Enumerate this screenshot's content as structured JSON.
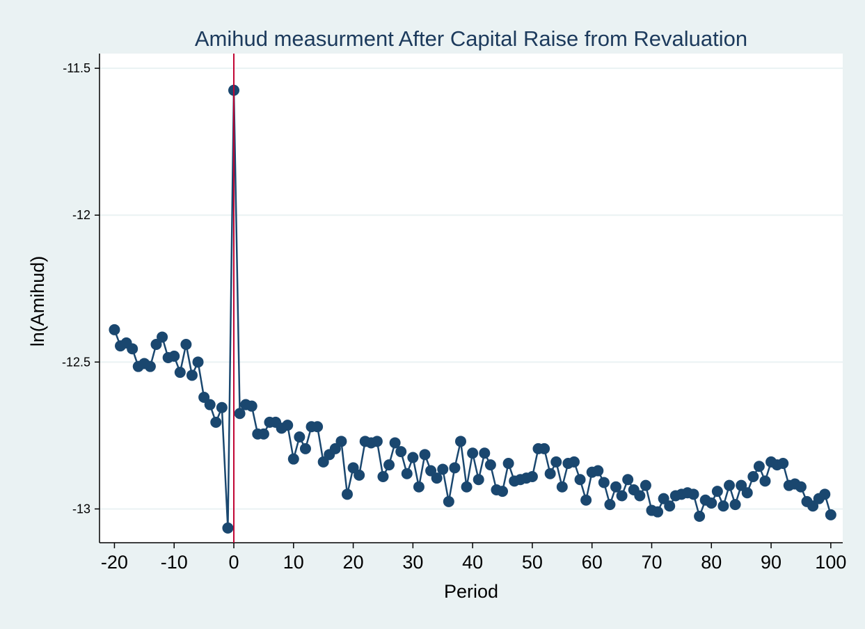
{
  "chart_data": {
    "type": "scatter",
    "title": "Amihud measurment  After Capital Raise from Revaluation",
    "xlabel": "Period",
    "ylabel": "ln(Amihud)",
    "xlim": [
      -22.5,
      102
    ],
    "ylim": [
      -13.115,
      -11.45
    ],
    "xticks": [
      -20,
      -10,
      0,
      10,
      20,
      30,
      40,
      50,
      60,
      70,
      80,
      90,
      100
    ],
    "xtick_labels": [
      "-20",
      "-10",
      "0",
      "10",
      "20",
      "30",
      "40",
      "50",
      "60",
      "70",
      "80",
      "90",
      "100"
    ],
    "yticks": [
      -11.5,
      -12,
      -12.5,
      -13
    ],
    "ytick_labels": [
      "-11.5",
      "-12",
      "-12.5",
      "-13"
    ],
    "grid": true,
    "reference_line_x": 0,
    "colors": {
      "series": "#1a476f",
      "reference_line": "#c10534",
      "background": "#eaf2f3",
      "plot_background": "#ffffff",
      "grid": "#eaf2f3"
    },
    "series": [
      {
        "x": [
          -20,
          -19,
          -18,
          -17,
          -16,
          -15,
          -14,
          -13,
          -12,
          -11,
          -10,
          -9,
          -8,
          -7,
          -6,
          -5,
          -4,
          -3,
          -2,
          -1,
          0,
          1,
          2,
          3,
          4,
          5,
          6,
          7,
          8,
          9,
          10,
          11,
          12,
          13,
          14,
          15,
          16,
          17,
          18,
          19,
          20,
          21,
          22,
          23,
          24,
          25,
          26,
          27,
          28,
          29,
          30,
          31,
          32,
          33,
          34,
          35,
          36,
          37,
          38,
          39,
          40,
          41,
          42,
          43,
          44,
          45,
          46,
          47,
          48,
          49,
          50,
          51,
          52,
          53,
          54,
          55,
          56,
          57,
          58,
          59,
          60,
          61,
          62,
          63,
          64,
          65,
          66,
          67,
          68,
          69,
          70,
          71,
          72,
          73,
          74,
          75,
          76,
          77,
          78,
          79,
          80,
          81,
          82,
          83,
          84,
          85,
          86,
          87,
          88,
          89,
          90,
          91,
          92,
          93,
          94,
          95,
          96,
          97,
          98,
          99,
          100
        ],
        "y": [
          -12.39,
          -12.445,
          -12.435,
          -12.455,
          -12.515,
          -12.505,
          -12.515,
          -12.44,
          -12.415,
          -12.485,
          -12.48,
          -12.535,
          -12.44,
          -12.545,
          -12.5,
          -12.62,
          -12.645,
          -12.705,
          -12.655,
          -13.065,
          -11.575,
          -12.675,
          -12.645,
          -12.65,
          -12.745,
          -12.745,
          -12.705,
          -12.705,
          -12.725,
          -12.715,
          -12.83,
          -12.755,
          -12.795,
          -12.72,
          -12.72,
          -12.84,
          -12.815,
          -12.795,
          -12.77,
          -12.95,
          -12.86,
          -12.885,
          -12.77,
          -12.775,
          -12.77,
          -12.89,
          -12.85,
          -12.775,
          -12.805,
          -12.88,
          -12.825,
          -12.925,
          -12.815,
          -12.87,
          -12.895,
          -12.865,
          -12.975,
          -12.86,
          -12.77,
          -12.925,
          -12.81,
          -12.9,
          -12.81,
          -12.85,
          -12.935,
          -12.94,
          -12.845,
          -12.905,
          -12.9,
          -12.895,
          -12.89,
          -12.795,
          -12.795,
          -12.88,
          -12.84,
          -12.925,
          -12.845,
          -12.84,
          -12.9,
          -12.97,
          -12.875,
          -12.87,
          -12.91,
          -12.985,
          -12.925,
          -12.955,
          -12.9,
          -12.935,
          -12.955,
          -12.92,
          -13.005,
          -13.01,
          -12.965,
          -12.99,
          -12.955,
          -12.95,
          -12.945,
          -12.95,
          -13.025,
          -12.97,
          -12.98,
          -12.94,
          -12.99,
          -12.92,
          -12.985,
          -12.92,
          -12.945,
          -12.89,
          -12.855,
          -12.905,
          -12.84,
          -12.85,
          -12.845,
          -12.92,
          -12.915,
          -12.925,
          -12.975,
          -12.99,
          -12.965,
          -12.95,
          -13.02
        ]
      }
    ]
  }
}
